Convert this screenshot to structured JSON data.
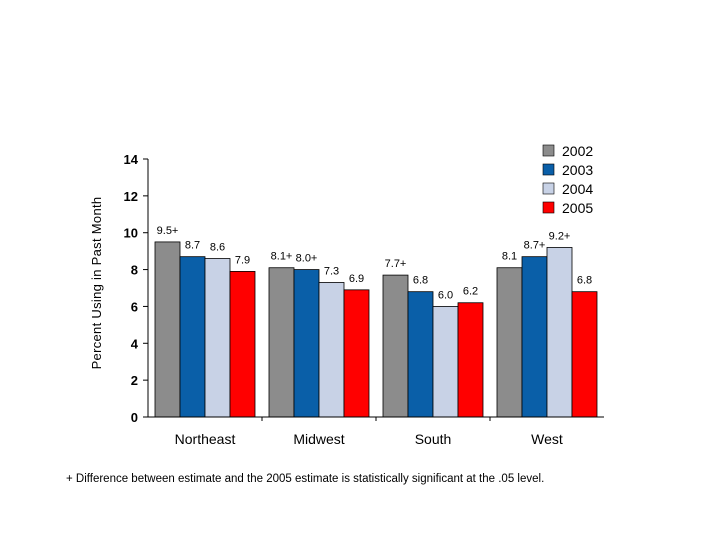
{
  "chart_data": {
    "type": "bar",
    "ylabel": "Percent Using in Past Month",
    "xlabel": "",
    "ylim": [
      0,
      14
    ],
    "yticks": [
      0,
      2,
      4,
      6,
      8,
      10,
      12,
      14
    ],
    "grid": false,
    "legend_position": "top-right",
    "categories": [
      "Northeast",
      "Midwest",
      "South",
      "West"
    ],
    "series": [
      {
        "name": "2002",
        "color": "#8c8c8c",
        "values": [
          9.5,
          8.1,
          7.7,
          8.1
        ],
        "labels": [
          "9.5+",
          "8.1+",
          "7.7+",
          "8.1"
        ]
      },
      {
        "name": "2003",
        "color": "#0a5fa8",
        "values": [
          8.7,
          8.0,
          6.8,
          8.7
        ],
        "labels": [
          "8.7",
          "8.0+",
          "6.8",
          "8.7+"
        ]
      },
      {
        "name": "2004",
        "color": "#c8d2e6",
        "values": [
          8.6,
          7.3,
          6.0,
          9.2
        ],
        "labels": [
          "8.6",
          "7.3",
          "6.0",
          "9.2+"
        ]
      },
      {
        "name": "2005",
        "color": "#ff0000",
        "values": [
          7.9,
          6.9,
          6.2,
          6.8
        ],
        "labels": [
          "7.9",
          "6.9",
          "6.2",
          "6.8"
        ]
      }
    ],
    "footnote": "+ Difference between estimate and the 2005 estimate is statistically significant at the .05 level."
  }
}
